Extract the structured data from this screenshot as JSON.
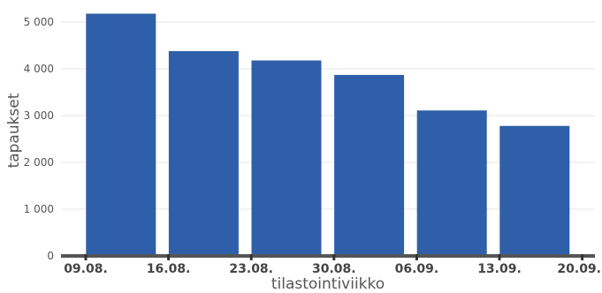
{
  "chart_data": {
    "type": "bar",
    "categories": [
      "09.08.",
      "16.08.",
      "23.08.",
      "30.08.",
      "06.09.",
      "13.09."
    ],
    "values": [
      5180,
      4380,
      4180,
      3870,
      3110,
      2780
    ],
    "x_tick_labels": [
      "09.08.",
      "16.08.",
      "23.08.",
      "30.08.",
      "06.09.",
      "13.09.",
      "20.09."
    ],
    "y_ticks": [
      0,
      1000,
      2000,
      3000,
      4000,
      5000
    ],
    "y_tick_labels": [
      "0",
      "1 000",
      "2 000",
      "3 000",
      "4 000",
      "5 000"
    ],
    "ylim": [
      0,
      5300
    ],
    "xlabel": "tilastointiviikko",
    "ylabel": "tapaukset",
    "bar_color": "#2e5fa8",
    "grid": true
  }
}
